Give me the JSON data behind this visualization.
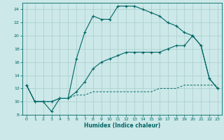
{
  "xlabel": "Humidex (Indice chaleur)",
  "background_color": "#cce8e8",
  "grid_color": "#aacccc",
  "line_color": "#006666",
  "xlim": [
    -0.5,
    23.5
  ],
  "ylim": [
    8,
    25
  ],
  "xticks": [
    0,
    1,
    2,
    3,
    4,
    5,
    6,
    7,
    8,
    9,
    10,
    11,
    12,
    13,
    14,
    15,
    16,
    17,
    18,
    19,
    20,
    21,
    22,
    23
  ],
  "yticks": [
    8,
    10,
    12,
    14,
    16,
    18,
    20,
    22,
    24
  ],
  "curve1_x": [
    0,
    1,
    2,
    3,
    4,
    5,
    6,
    7,
    8,
    9,
    10,
    11,
    12,
    13,
    14,
    15,
    16,
    17,
    18,
    19,
    20,
    21,
    22,
    23
  ],
  "curve1_y": [
    12.5,
    10.0,
    10.0,
    8.5,
    10.5,
    10.5,
    16.5,
    20.5,
    23.0,
    22.5,
    22.5,
    24.5,
    24.5,
    24.5,
    24.0,
    23.5,
    23.0,
    22.0,
    21.5,
    20.5,
    20.0,
    18.5,
    13.5,
    12.0
  ],
  "curve2_x": [
    0,
    1,
    2,
    3,
    4,
    5,
    6,
    7,
    8,
    9,
    10,
    11,
    12,
    13,
    14,
    15,
    16,
    17,
    18,
    19,
    20,
    21,
    22,
    23
  ],
  "curve2_y": [
    12.5,
    10.0,
    10.0,
    10.0,
    10.5,
    10.5,
    11.0,
    11.0,
    11.5,
    11.5,
    11.5,
    11.5,
    11.5,
    11.5,
    11.5,
    11.5,
    12.0,
    12.0,
    12.0,
    12.5,
    12.5,
    12.5,
    12.5,
    12.5
  ],
  "curve3_x": [
    0,
    1,
    2,
    3,
    4,
    5,
    6,
    7,
    8,
    9,
    10,
    11,
    12,
    13,
    14,
    15,
    16,
    17,
    18,
    19,
    20,
    21,
    22,
    23
  ],
  "curve3_y": [
    12.5,
    10.0,
    10.0,
    10.0,
    10.5,
    10.5,
    11.5,
    13.0,
    15.0,
    16.0,
    16.5,
    17.0,
    17.5,
    17.5,
    17.5,
    17.5,
    17.5,
    18.0,
    18.5,
    18.5,
    20.0,
    18.5,
    13.5,
    12.0
  ]
}
